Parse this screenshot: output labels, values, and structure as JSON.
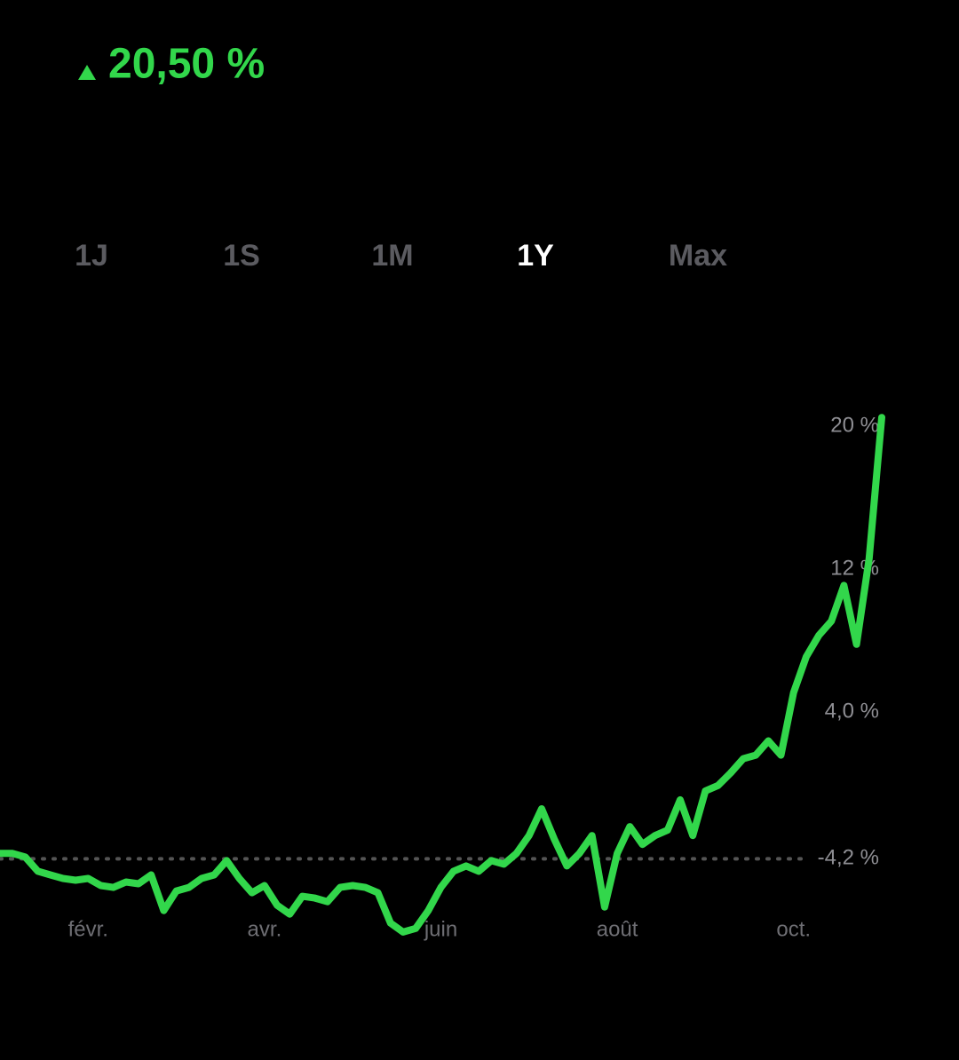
{
  "header": {
    "change": "20,50 %"
  },
  "tabs": {
    "items": [
      "1J",
      "1S",
      "1M",
      "1Y",
      "Max"
    ],
    "selected": 3
  },
  "chart_data": {
    "type": "line",
    "color": "#32d74b",
    "values": [
      -3.9,
      -3.9,
      -4.1,
      -4.9,
      -5.1,
      -5.3,
      -5.4,
      -5.3,
      -5.7,
      -5.8,
      -5.5,
      -5.6,
      -5.1,
      -7.1,
      -6.0,
      -5.8,
      -5.3,
      -5.1,
      -4.3,
      -5.3,
      -6.1,
      -5.7,
      -6.8,
      -7.3,
      -6.3,
      -6.4,
      -6.6,
      -5.8,
      -5.7,
      -5.8,
      -6.1,
      -7.8,
      -8.3,
      -8.1,
      -7.1,
      -5.8,
      -4.9,
      -4.6,
      -4.9,
      -4.3,
      -4.5,
      -3.9,
      -2.9,
      -1.4,
      -3.1,
      -4.6,
      -3.9,
      -2.9,
      -6.9,
      -3.9,
      -2.4,
      -3.4,
      -2.9,
      -2.6,
      -0.9,
      -2.9,
      -0.4,
      -0.1,
      0.6,
      1.4,
      1.6,
      2.4,
      1.6,
      5.1,
      7.1,
      8.3,
      9.1,
      11.1,
      7.8,
      12.6,
      20.5
    ],
    "xticks": [
      {
        "value": 7,
        "label": "févr."
      },
      {
        "value": 21,
        "label": "avr."
      },
      {
        "value": 35,
        "label": "juin"
      },
      {
        "value": 49,
        "label": "août"
      },
      {
        "value": 63,
        "label": "oct."
      }
    ],
    "ylim": [
      -9.3,
      22
    ],
    "yticks": [
      {
        "value": 20,
        "label": "20 %"
      },
      {
        "value": 12,
        "label": "12 %"
      },
      {
        "value": 4,
        "label": "4,0 %"
      },
      {
        "value": -4.2,
        "label": "-4,2 %"
      }
    ],
    "reference_line": -4.2
  }
}
